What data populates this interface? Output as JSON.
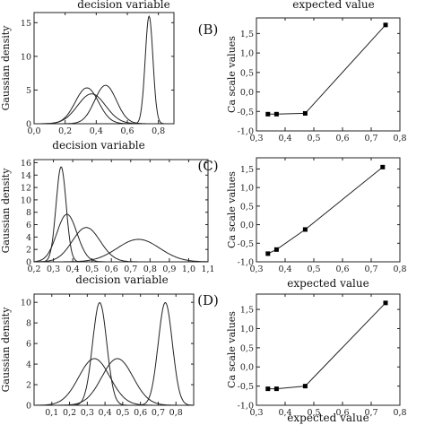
{
  "chart_data": [
    {
      "id": "B-left",
      "type": "line",
      "title": "decision variable",
      "xlabel": "decision variable",
      "ylabel": "Gaussian density",
      "xlim": [
        0.0,
        0.9
      ],
      "ylim": [
        0,
        16.5
      ],
      "xticks": [
        "0,0",
        "0,2",
        "0,4",
        "0,6",
        "0,8"
      ],
      "xtick_values": [
        0.0,
        0.2,
        0.4,
        0.6,
        0.8
      ],
      "yticks": [
        "0",
        "5",
        "10",
        "15"
      ],
      "ytick_values": [
        0,
        5,
        10,
        15
      ],
      "series": [
        {
          "mean": 0.34,
          "sd": 0.075
        },
        {
          "mean": 0.37,
          "sd": 0.09
        },
        {
          "mean": 0.46,
          "sd": 0.07
        },
        {
          "mean": 0.74,
          "sd": 0.025
        }
      ]
    },
    {
      "id": "B-right",
      "type": "line",
      "panel_label": "(B)",
      "title": "expected value",
      "xlabel": "",
      "ylabel": "Ca scale values",
      "xlim": [
        0.3,
        0.8
      ],
      "ylim": [
        -1.0,
        1.9
      ],
      "xticks": [
        "0,3",
        "0,4",
        "0,5",
        "0,6",
        "0,7",
        "0,8"
      ],
      "xtick_values": [
        0.3,
        0.4,
        0.5,
        0.6,
        0.7,
        0.8
      ],
      "yticks": [
        "-1,0",
        "-0,5",
        "0,0",
        "0,5",
        "1,0",
        "1,5"
      ],
      "ytick_values": [
        -1.0,
        -0.5,
        0.0,
        0.5,
        1.0,
        1.5
      ],
      "x": [
        0.34,
        0.37,
        0.47,
        0.75
      ],
      "y": [
        -0.57,
        -0.57,
        -0.55,
        1.72
      ]
    },
    {
      "id": "C-left",
      "type": "line",
      "xlabel": "decision variable",
      "ylabel": "Gaussian density",
      "xlim": [
        0.2,
        1.1
      ],
      "ylim": [
        0,
        16.5
      ],
      "xticks": [
        "0,2",
        "0,3",
        "0,4",
        "0,5",
        "0,6",
        "0,7",
        "0,8",
        "0,9",
        "1,0",
        "1,1"
      ],
      "xtick_values": [
        0.2,
        0.3,
        0.4,
        0.5,
        0.6,
        0.7,
        0.8,
        0.9,
        1.0,
        1.1
      ],
      "yticks": [
        "0",
        "2",
        "4",
        "6",
        "8",
        "10",
        "12",
        "14",
        "16"
      ],
      "ytick_values": [
        0,
        2,
        4,
        6,
        8,
        10,
        12,
        14,
        16
      ],
      "series": [
        {
          "mean": 0.34,
          "sd": 0.026
        },
        {
          "mean": 0.37,
          "sd": 0.052
        },
        {
          "mean": 0.47,
          "sd": 0.072
        },
        {
          "mean": 0.74,
          "sd": 0.11
        }
      ]
    },
    {
      "id": "C-right",
      "type": "line",
      "panel_label": "(C)",
      "xlabel": "expected value",
      "ylabel": "Ca scale values",
      "xlim": [
        0.3,
        0.8
      ],
      "ylim": [
        -1.0,
        1.8
      ],
      "xticks": [
        "0,3",
        "0,4",
        "0,5",
        "0,6",
        "0,7",
        "0,8"
      ],
      "xtick_values": [
        0.3,
        0.4,
        0.5,
        0.6,
        0.7,
        0.8
      ],
      "yticks": [
        "-1,0",
        "-0,5",
        "0,0",
        "0,5",
        "1,0",
        "1,5"
      ],
      "ytick_values": [
        -1.0,
        -0.5,
        0.0,
        0.5,
        1.0,
        1.5
      ],
      "x": [
        0.34,
        0.37,
        0.47,
        0.74
      ],
      "y": [
        -0.78,
        -0.67,
        -0.13,
        1.55
      ]
    },
    {
      "id": "D-left",
      "type": "line",
      "xlabel": "decision variable",
      "ylabel": "Gaussian density",
      "xlim": [
        0.0,
        0.9
      ],
      "ylim": [
        0,
        10.8
      ],
      "xticks": [
        "0,1",
        "0,2",
        "0,3",
        "0,4",
        "0,5",
        "0,6",
        "0,7",
        "0,8"
      ],
      "xtick_values": [
        0.1,
        0.2,
        0.3,
        0.4,
        0.5,
        0.6,
        0.7,
        0.8
      ],
      "yticks": [
        "0",
        "2",
        "4",
        "6",
        "8",
        "10"
      ],
      "ytick_values": [
        0,
        2,
        4,
        6,
        8,
        10
      ],
      "series": [
        {
          "mean": 0.34,
          "sd": 0.088
        },
        {
          "mean": 0.37,
          "sd": 0.04
        },
        {
          "mean": 0.47,
          "sd": 0.088
        },
        {
          "mean": 0.74,
          "sd": 0.04
        }
      ]
    },
    {
      "id": "D-right",
      "type": "line",
      "panel_label": "(D)",
      "xlabel": "expected value",
      "ylabel": "Ca scale values",
      "xlim": [
        0.3,
        0.8
      ],
      "ylim": [
        -1.0,
        1.9
      ],
      "xticks": [
        "0,3",
        "0,4",
        "0,5",
        "0,6",
        "0,7",
        "0,8"
      ],
      "xtick_values": [
        0.3,
        0.4,
        0.5,
        0.6,
        0.7,
        0.8
      ],
      "yticks": [
        "-1,0",
        "-0,5",
        "0,0",
        "0,5",
        "1,0",
        "1,5"
      ],
      "ytick_values": [
        -1.0,
        -0.5,
        0.0,
        0.5,
        1.0,
        1.5
      ],
      "x": [
        0.34,
        0.37,
        0.47,
        0.75
      ],
      "y": [
        -0.57,
        -0.57,
        -0.5,
        1.67
      ]
    }
  ]
}
